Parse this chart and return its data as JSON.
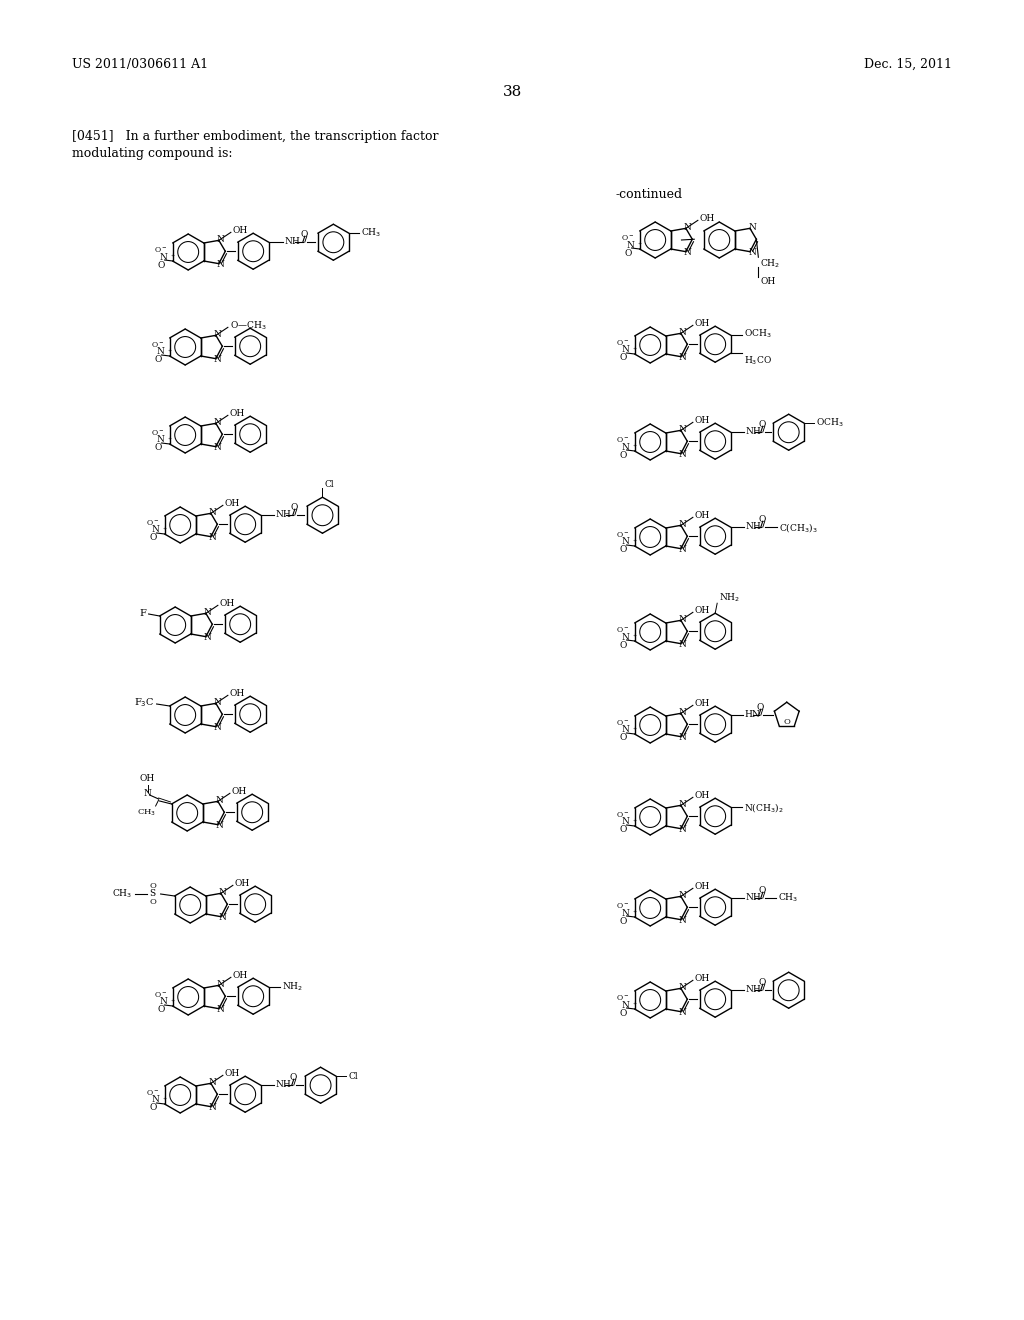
{
  "patent_number": "US 2011/0306611 A1",
  "patent_date": "Dec. 15, 2011",
  "page_number": "38",
  "para_text_1": "[0451]   In a further embodiment, the transcription factor",
  "para_text_2": "modulating compound is:",
  "continued_label": "-continued",
  "bg_color": "#ffffff",
  "fg_color": "#000000"
}
